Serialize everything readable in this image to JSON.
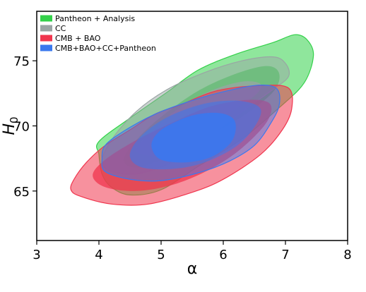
{
  "chart_data": {
    "type": "contour",
    "xlabel": "α",
    "ylabel": "H",
    "ylabel_sub": "0",
    "xlim": [
      3,
      8
    ],
    "ylim": [
      61.2,
      78.8
    ],
    "xticks": [
      "3",
      "4",
      "5",
      "6",
      "7",
      "8"
    ],
    "xtick_values": [
      3,
      4,
      5,
      6,
      7,
      8
    ],
    "yticks": [
      "65",
      "70",
      "75"
    ],
    "ytick_values": [
      65,
      70,
      75
    ],
    "legend_position": "top-left",
    "series": [
      {
        "name": "Pantheon + Analysis",
        "color": "#33d14a",
        "contours": [
          {
            "level": "95%",
            "opacity": 0.55,
            "points": [
              [
                4.05,
                66.3
              ],
              [
                4.0,
                67.8
              ],
              [
                4.0,
                68.8
              ],
              [
                4.5,
                70.6
              ],
              [
                5.1,
                72.6
              ],
              [
                5.6,
                74.3
              ],
              [
                6.2,
                75.5
              ],
              [
                6.8,
                76.4
              ],
              [
                7.15,
                77.0
              ],
              [
                7.35,
                76.6
              ],
              [
                7.45,
                75.4
              ],
              [
                7.3,
                73.3
              ],
              [
                6.9,
                71.4
              ],
              [
                6.3,
                69.0
              ],
              [
                5.6,
                66.9
              ],
              [
                5.0,
                65.1
              ],
              [
                4.5,
                64.7
              ],
              [
                4.2,
                65.3
              ]
            ]
          },
          {
            "level": "68%",
            "opacity": 0.8,
            "points": [
              [
                4.4,
                67.4
              ],
              [
                4.6,
                68.9
              ],
              [
                5.0,
                70.7
              ],
              [
                5.6,
                72.7
              ],
              [
                6.2,
                74.0
              ],
              [
                6.7,
                74.6
              ],
              [
                6.9,
                74.0
              ],
              [
                6.8,
                72.6
              ],
              [
                6.3,
                70.7
              ],
              [
                5.7,
                69.1
              ],
              [
                5.1,
                67.6
              ],
              [
                4.6,
                66.8
              ]
            ]
          }
        ]
      },
      {
        "name": "CC",
        "color": "#9aa5a4",
        "contours": [
          {
            "level": "95%",
            "opacity": 0.5,
            "points": [
              [
                4.05,
                67.1
              ],
              [
                4.2,
                68.9
              ],
              [
                4.6,
                71.1
              ],
              [
                5.1,
                72.8
              ],
              [
                5.7,
                74.1
              ],
              [
                6.3,
                75.0
              ],
              [
                6.8,
                75.3
              ],
              [
                7.0,
                74.8
              ],
              [
                7.05,
                73.8
              ],
              [
                6.8,
                72.8
              ],
              [
                6.3,
                71.1
              ],
              [
                5.8,
                69.3
              ],
              [
                5.3,
                67.5
              ],
              [
                4.7,
                66.4
              ],
              [
                4.3,
                66.4
              ]
            ]
          },
          {
            "level": "68%",
            "opacity": 0.75,
            "points": [
              [
                4.6,
                68.1
              ],
              [
                4.9,
                69.8
              ],
              [
                5.3,
                71.4
              ],
              [
                5.8,
                72.7
              ],
              [
                6.3,
                73.4
              ],
              [
                6.6,
                73.2
              ],
              [
                6.5,
                72.3
              ],
              [
                6.0,
                70.7
              ],
              [
                5.5,
                69.1
              ],
              [
                5.0,
                67.8
              ]
            ]
          }
        ]
      },
      {
        "name": "CMB + BAO",
        "color": "#f0364e",
        "contours": [
          {
            "level": "95%",
            "opacity": 0.55,
            "points": [
              [
                3.6,
                65.9
              ],
              [
                3.55,
                65.1
              ],
              [
                3.7,
                64.6
              ],
              [
                4.2,
                64.0
              ],
              [
                4.8,
                64.0
              ],
              [
                5.5,
                64.9
              ],
              [
                6.0,
                65.9
              ],
              [
                6.6,
                67.8
              ],
              [
                6.95,
                69.7
              ],
              [
                7.1,
                71.3
              ],
              [
                7.05,
                72.9
              ],
              [
                6.6,
                73.1
              ],
              [
                5.9,
                72.7
              ],
              [
                5.3,
                71.6
              ],
              [
                4.9,
                70.9
              ],
              [
                4.5,
                69.7
              ],
              [
                4.1,
                68.5
              ],
              [
                3.8,
                67.2
              ]
            ]
          },
          {
            "level": "68%",
            "opacity": 0.75,
            "points": [
              [
                3.9,
                66.2
              ],
              [
                4.1,
                65.3
              ],
              [
                4.6,
                65.0
              ],
              [
                5.2,
                65.5
              ],
              [
                5.8,
                66.7
              ],
              [
                6.3,
                68.3
              ],
              [
                6.7,
                70.3
              ],
              [
                6.75,
                71.7
              ],
              [
                6.4,
                72.0
              ],
              [
                5.8,
                71.5
              ],
              [
                5.2,
                70.3
              ],
              [
                4.6,
                68.9
              ],
              [
                4.1,
                67.4
              ]
            ]
          }
        ]
      },
      {
        "name": "CMB+BAO+CC+Pantheon",
        "color": "#3a78ee",
        "contours": [
          {
            "level": "95%",
            "opacity": 0.45,
            "points": [
              [
                4.05,
                67.5
              ],
              [
                4.1,
                66.5
              ],
              [
                4.5,
                65.9
              ],
              [
                5.0,
                65.8
              ],
              [
                5.6,
                66.4
              ],
              [
                6.1,
                67.3
              ],
              [
                6.5,
                68.5
              ],
              [
                6.75,
                70.1
              ],
              [
                6.9,
                71.6
              ],
              [
                6.85,
                72.9
              ],
              [
                6.5,
                73.1
              ],
              [
                5.9,
                72.5
              ],
              [
                5.4,
                71.8
              ],
              [
                4.9,
                70.9
              ],
              [
                4.4,
                69.6
              ],
              [
                4.1,
                68.5
              ]
            ]
          },
          {
            "level": "68%",
            "opacity": 0.55,
            "points": [
              [
                4.5,
                67.6
              ],
              [
                4.7,
                66.8
              ],
              [
                5.2,
                66.7
              ],
              [
                5.7,
                67.2
              ],
              [
                6.2,
                68.4
              ],
              [
                6.5,
                69.9
              ],
              [
                6.6,
                71.3
              ],
              [
                6.3,
                71.9
              ],
              [
                5.8,
                71.8
              ],
              [
                5.3,
                71.1
              ],
              [
                4.9,
                70.1
              ],
              [
                4.6,
                68.8
              ]
            ]
          },
          {
            "level": "core",
            "opacity": 0.9,
            "points": [
              [
                4.85,
                68.3
              ],
              [
                5.0,
                67.4
              ],
              [
                5.4,
                67.2
              ],
              [
                5.8,
                67.6
              ],
              [
                6.1,
                68.6
              ],
              [
                6.2,
                69.7
              ],
              [
                6.15,
                70.6
              ],
              [
                5.9,
                71.0
              ],
              [
                5.5,
                70.8
              ],
              [
                5.1,
                70.0
              ],
              [
                4.9,
                69.2
              ]
            ]
          }
        ]
      }
    ]
  }
}
